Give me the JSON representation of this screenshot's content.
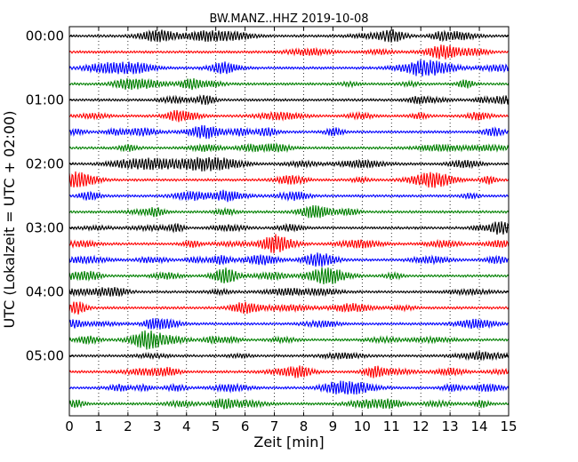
{
  "chart_data": {
    "type": "line",
    "title": "BW.MANZ..HHZ 2019-10-08",
    "xlabel": "Zeit  [min]",
    "ylabel": "UTC (Lokalzeit = UTC + 02:00)",
    "xlim": [
      0,
      15
    ],
    "xticks": [
      "0",
      "1",
      "2",
      "3",
      "4",
      "5",
      "6",
      "7",
      "8",
      "9",
      "10",
      "11",
      "12",
      "13",
      "14",
      "15"
    ],
    "yticks": [
      "00:00",
      "01:00",
      "02:00",
      "03:00",
      "04:00",
      "05:00"
    ],
    "grid": "vertical dotted at each minute",
    "trace_minutes": 15,
    "colors": [
      "#000000",
      "#ff0000",
      "#0000ff",
      "#008000"
    ],
    "series": [
      {
        "start": "00:00"
      },
      {
        "start": "00:15"
      },
      {
        "start": "00:30"
      },
      {
        "start": "00:45"
      },
      {
        "start": "01:00"
      },
      {
        "start": "01:15"
      },
      {
        "start": "01:30"
      },
      {
        "start": "01:45"
      },
      {
        "start": "02:00"
      },
      {
        "start": "02:15"
      },
      {
        "start": "02:30"
      },
      {
        "start": "02:45"
      },
      {
        "start": "03:00"
      },
      {
        "start": "03:15"
      },
      {
        "start": "03:30"
      },
      {
        "start": "03:45"
      },
      {
        "start": "04:00"
      },
      {
        "start": "04:15"
      },
      {
        "start": "04:30"
      },
      {
        "start": "04:45"
      },
      {
        "start": "05:00"
      },
      {
        "start": "05:15"
      },
      {
        "start": "05:30"
      },
      {
        "start": "05:45"
      }
    ]
  }
}
